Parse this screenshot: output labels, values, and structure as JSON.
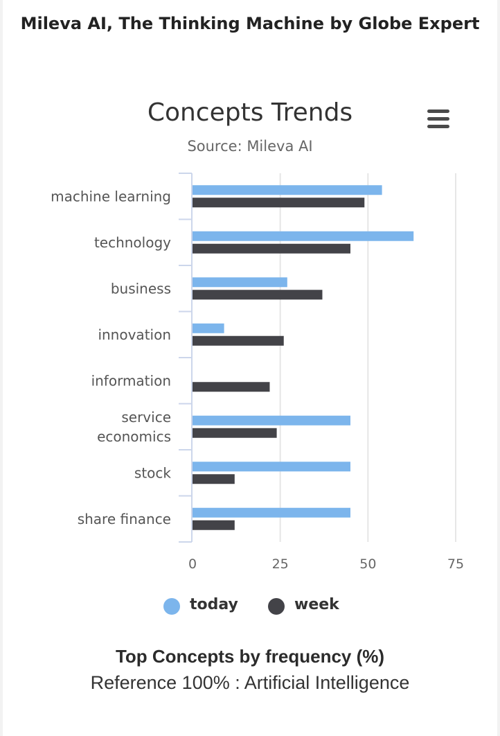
{
  "app": {
    "title": "Mileva AI, The Thinking Machine by Globe Expert"
  },
  "colors": {
    "today": "#7cb5ec",
    "week": "#434348",
    "grid": "#e6e6e6",
    "axis": "#ccd6eb"
  },
  "menu": {
    "icon": "hamburger-menu-icon"
  },
  "chart_data": {
    "type": "bar",
    "orientation": "horizontal",
    "title": "Concepts Trends",
    "subtitle": "Source: Mileva AI",
    "categories": [
      [
        "machine learning"
      ],
      [
        "technology"
      ],
      [
        "business"
      ],
      [
        "innovation"
      ],
      [
        "information"
      ],
      [
        "service",
        "economics"
      ],
      [
        "stock"
      ],
      [
        "share finance"
      ]
    ],
    "series": [
      {
        "name": "today",
        "values": [
          54,
          63,
          27,
          9,
          0,
          45,
          45,
          45
        ]
      },
      {
        "name": "week",
        "values": [
          49,
          45,
          37,
          26,
          22,
          24,
          12,
          12
        ]
      }
    ],
    "xlim": [
      0,
      75
    ],
    "xticks": [
      "0",
      "25",
      "50",
      "75"
    ],
    "grid": true,
    "legend_position": "bottom"
  },
  "footer": {
    "title": "Top Concepts by frequency (%)",
    "note": "Reference 100% : Artificial Intelligence"
  }
}
